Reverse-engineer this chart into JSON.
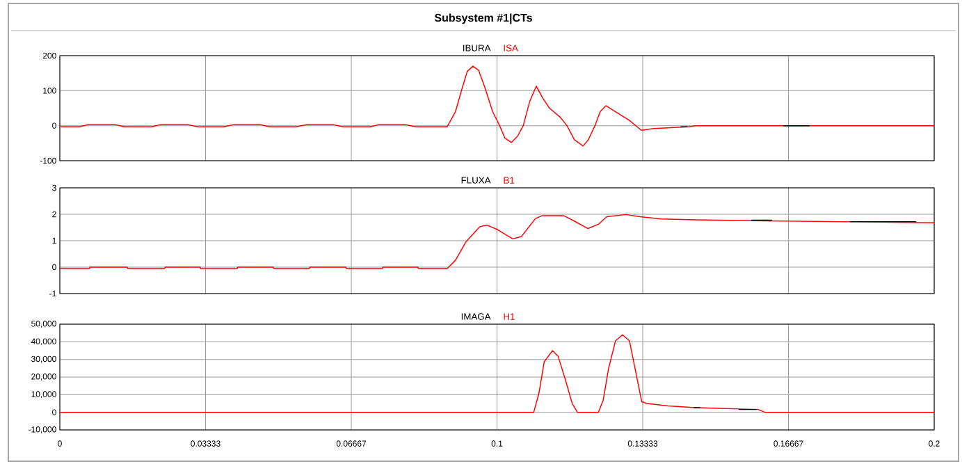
{
  "chart_data": [
    {
      "type": "line",
      "title": "Subsystem #1|CTs",
      "xlim": [
        0,
        0.2
      ],
      "ylim": [
        -100,
        200
      ],
      "xticks": [
        0,
        0.03333,
        0.06667,
        0.1,
        0.13333,
        0.16667,
        0.2
      ],
      "yticks": [
        -100,
        0,
        100,
        200
      ],
      "grid": true,
      "legend": "top",
      "tick_labels": "y",
      "series": [
        {
          "name": "ISA",
          "color": "#ff0000",
          "x": [
            0,
            0.0045,
            0.0065,
            0.0126,
            0.0148,
            0.021,
            0.0231,
            0.0293,
            0.0315,
            0.0375,
            0.0398,
            0.0458,
            0.048,
            0.054,
            0.0565,
            0.0625,
            0.0648,
            0.071,
            0.073,
            0.079,
            0.0815,
            0.0886,
            0.0905,
            0.0921,
            0.0932,
            0.0945,
            0.0958,
            0.0972,
            0.099,
            0.1006,
            0.1018,
            0.1033,
            0.1047,
            0.106,
            0.1075,
            0.109,
            0.1104,
            0.112,
            0.1144,
            0.116,
            0.1177,
            0.1197,
            0.1209,
            0.1224,
            0.1236,
            0.1249,
            0.1271,
            0.1303,
            0.133,
            0.1359,
            0.1438,
            0.1454,
            0.2
          ],
          "values": [
            -3,
            -3,
            3,
            3,
            -3,
            -3,
            3,
            3,
            -3,
            -3,
            3,
            3,
            -3,
            -3,
            3,
            3,
            -3,
            -3,
            3,
            3,
            -3,
            -3,
            40,
            110,
            155,
            170,
            158,
            110,
            40,
            0,
            -35,
            -48,
            -30,
            0,
            70,
            113,
            80,
            50,
            25,
            0,
            -40,
            -58,
            -40,
            0,
            40,
            57,
            40,
            15,
            -13,
            -8,
            -3,
            0,
            0
          ]
        },
        {
          "name": "IBURA",
          "color": "#000000",
          "x": [
            0.142,
            0.1436,
            0.1437,
            0.1655,
            0.1715
          ],
          "values": [
            -3,
            -3,
            null,
            0,
            0
          ]
        }
      ]
    },
    {
      "type": "line",
      "xlim": [
        0,
        0.2
      ],
      "ylim": [
        -1,
        3
      ],
      "xticks": [
        0,
        0.03333,
        0.06667,
        0.1,
        0.13333,
        0.16667,
        0.2
      ],
      "yticks": [
        -1,
        0,
        1,
        2,
        3
      ],
      "grid": true,
      "legend": "top",
      "tick_labels": "y",
      "series": [
        {
          "name": "B1",
          "color": "#ff0000",
          "x": [
            0,
            0.0068,
            0.0069,
            0.0154,
            0.0155,
            0.024,
            0.0241,
            0.0321,
            0.0322,
            0.0406,
            0.0407,
            0.0488,
            0.0489,
            0.0571,
            0.0572,
            0.0654,
            0.0655,
            0.0738,
            0.0739,
            0.0819,
            0.082,
            0.0886,
            0.0905,
            0.0929,
            0.0961,
            0.0977,
            0.1001,
            0.1036,
            0.1056,
            0.1088,
            0.1104,
            0.1152,
            0.1176,
            0.1208,
            0.1232,
            0.1251,
            0.1295,
            0.1327,
            0.1375,
            0.1454,
            0.1613,
            0.2
          ],
          "values": [
            -0.05,
            -0.05,
            0,
            0,
            -0.05,
            -0.05,
            0,
            0,
            -0.05,
            -0.05,
            0,
            0,
            -0.05,
            -0.05,
            0,
            0,
            -0.05,
            -0.05,
            0,
            0,
            -0.05,
            -0.05,
            0.26,
            0.96,
            1.53,
            1.59,
            1.42,
            1.07,
            1.16,
            1.84,
            1.95,
            1.95,
            1.75,
            1.46,
            1.62,
            1.91,
            1.99,
            1.91,
            1.82,
            1.79,
            1.75,
            1.68
          ]
        },
        {
          "name": "FLUXA",
          "color": "#000000",
          "x": [
            0.1582,
            0.1629,
            0.163,
            0.1807,
            0.1959
          ],
          "values": [
            1.78,
            1.78,
            null,
            1.72,
            1.72
          ]
        }
      ]
    },
    {
      "type": "line",
      "xlim": [
        0,
        0.2
      ],
      "ylim": [
        -10000,
        50000
      ],
      "xticks": [
        0,
        0.03333,
        0.06667,
        0.1,
        0.13333,
        0.16667,
        0.2
      ],
      "yticks": [
        {
          "value": -10000,
          "label": "-10,000"
        },
        0,
        {
          "value": 10000,
          "label": "10,000"
        },
        {
          "value": 20000,
          "label": "20,000"
        },
        {
          "value": 30000,
          "label": "30,000"
        },
        {
          "value": 40000,
          "label": "40,000"
        },
        {
          "value": 50000,
          "label": "50,000"
        }
      ],
      "grid": true,
      "legend": "top",
      "series": [
        {
          "name": "H1",
          "color": "#ff0000",
          "x": [
            0,
            0.1084,
            0.1096,
            0.1108,
            0.1127,
            0.114,
            0.1156,
            0.1172,
            0.1184,
            0.1232,
            0.1243,
            0.1255,
            0.1271,
            0.1287,
            0.1303,
            0.1319,
            0.1331,
            0.1343,
            0.1391,
            0.1454,
            0.1597,
            0.1613,
            0.2
          ],
          "values": [
            0,
            0,
            10900,
            28700,
            35000,
            31600,
            18800,
            5000,
            0,
            0,
            7000,
            24700,
            40500,
            44000,
            40500,
            20800,
            6000,
            5000,
            3600,
            2600,
            1600,
            0,
            0
          ]
        },
        {
          "name": "IMAGA",
          "color": "#000000",
          "x": [
            0.145,
            0.1465,
            0.1466,
            0.1553,
            0.1593
          ],
          "values": [
            2600,
            2600,
            null,
            1600,
            1600
          ]
        }
      ]
    }
  ]
}
